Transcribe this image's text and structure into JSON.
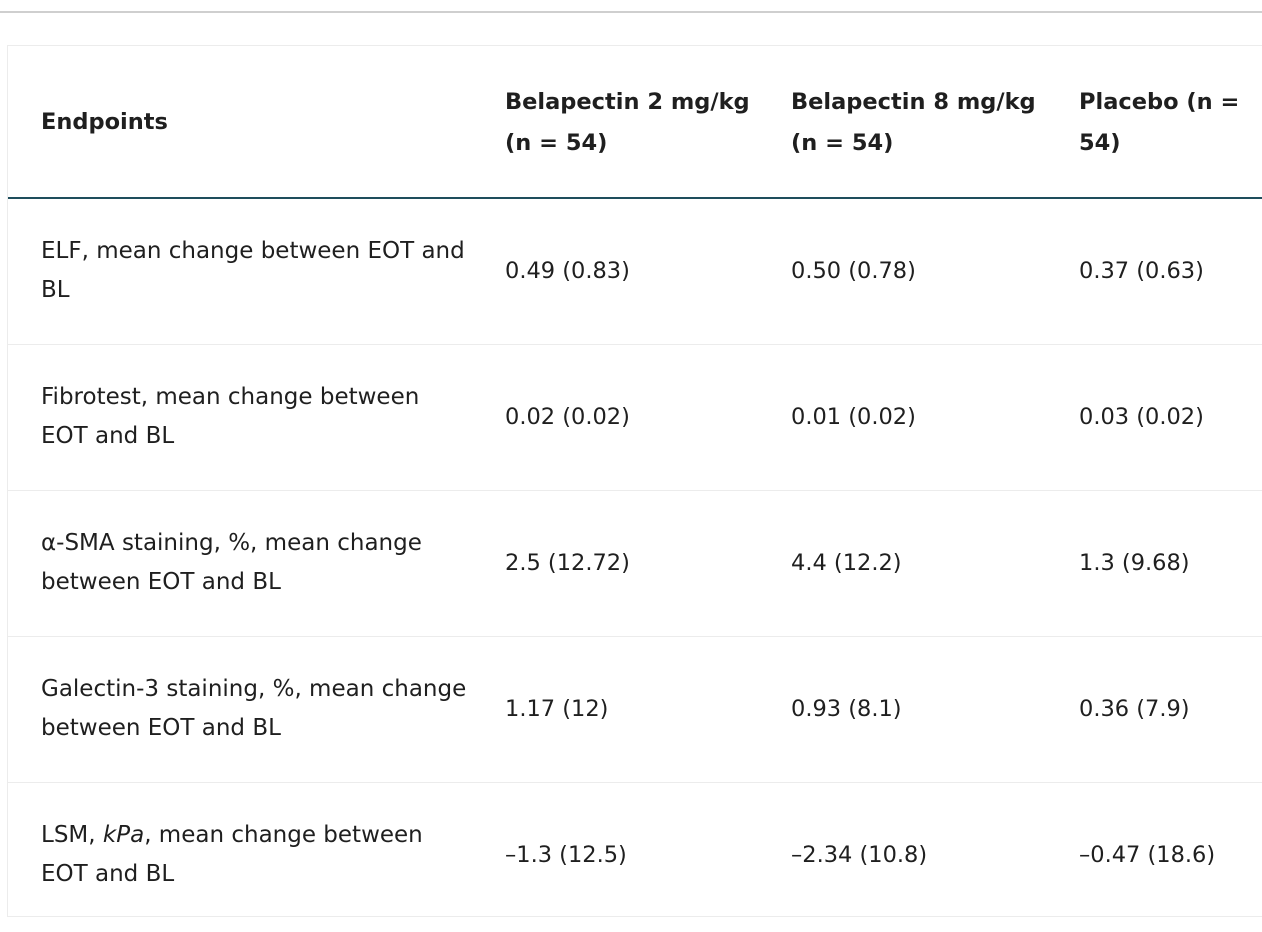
{
  "table": {
    "headers": [
      "Endpoints",
      "Belapectin 2 mg/kg (n = 54)",
      "Belapectin 8 mg/kg (n = 54)",
      "Placebo (n = 54)"
    ],
    "rows": [
      {
        "endpoint": "ELF, mean change between EOT and BL",
        "belapectin_2": "0.49 (0.83)",
        "belapectin_8": "0.50 (0.78)",
        "placebo": "0.37 (0.63)"
      },
      {
        "endpoint": "Fibrotest, mean change between EOT and BL",
        "belapectin_2": "0.02 (0.02)",
        "belapectin_8": "0.01 (0.02)",
        "placebo": "0.03 (0.02)"
      },
      {
        "endpoint": "α-SMA staining, %, mean change between EOT and BL",
        "belapectin_2": "2.5 (12.72)",
        "belapectin_8": "4.4 (12.2)",
        "placebo": "1.3 (9.68)"
      },
      {
        "endpoint": "Galectin-3 staining, %, mean change between EOT and BL",
        "belapectin_2": "1.17 (12)",
        "belapectin_8": "0.93 (8.1)",
        "placebo": "0.36 (7.9)"
      },
      {
        "endpoint_prefix": "LSM, ",
        "endpoint_unit": "kPa",
        "endpoint_suffix": ", mean change between EOT and BL",
        "belapectin_2": "–1.3 (12.5)",
        "belapectin_8": "–2.34 (10.8)",
        "placebo": "–0.47 (18.6)"
      }
    ]
  }
}
